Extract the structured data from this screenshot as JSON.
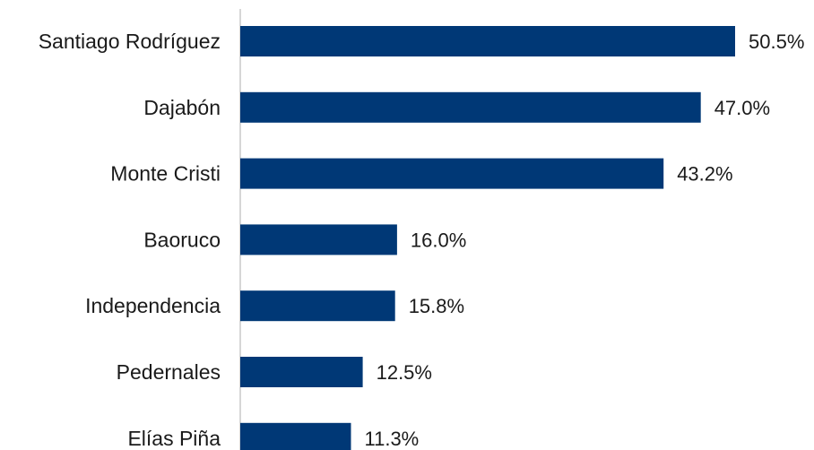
{
  "chart_data": {
    "type": "bar",
    "orientation": "horizontal",
    "categories": [
      "Santiago Rodríguez",
      "Dajabón",
      "Monte Cristi",
      "Baoruco",
      "Independencia",
      "Pedernales",
      "Elías Piña"
    ],
    "values": [
      50.5,
      47.0,
      43.2,
      16.0,
      15.8,
      12.5,
      11.3
    ],
    "value_labels": [
      "50.5%",
      "47.0%",
      "43.2%",
      "16.0%",
      "15.8%",
      "12.5%",
      "11.3%"
    ],
    "title": "",
    "xlabel": "",
    "ylabel": "",
    "xlim": [
      0,
      50.5
    ],
    "grid": false,
    "colors": {
      "bar": "#003876"
    }
  }
}
